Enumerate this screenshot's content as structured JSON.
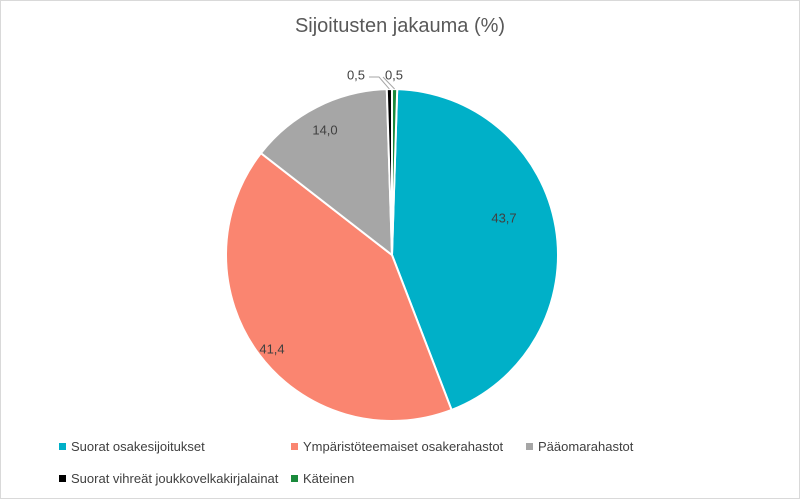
{
  "chart_data": {
    "type": "pie",
    "title": "Sijoitusten jakauma (%)",
    "categories": [
      "Suorat osakesijoitukset",
      "Ympäristöteemaiset osakerahastot",
      "Pääomarahastot",
      "Suorat vihreät joukkovelkakirjalainat",
      "Käteinen"
    ],
    "values": [
      43.7,
      41.4,
      14.0,
      0.5,
      0.5
    ],
    "data_labels": [
      "43,7",
      "41,4",
      "14,0",
      "0,5",
      "0,5"
    ],
    "colors": [
      "#00b0c8",
      "#fa8570",
      "#a6a6a6",
      "#000000",
      "#1a8a3c"
    ],
    "legend_position": "bottom"
  }
}
